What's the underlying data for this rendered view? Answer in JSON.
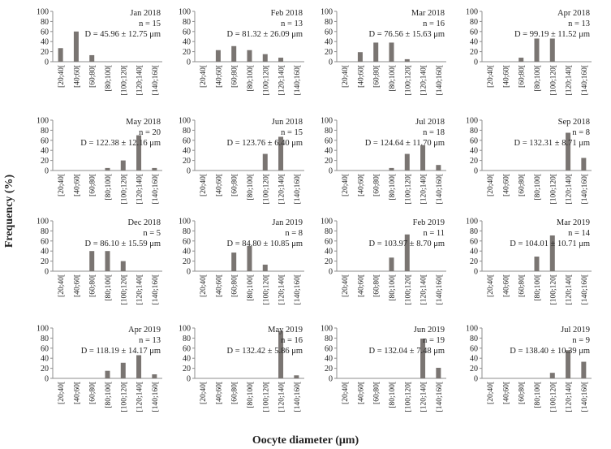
{
  "figure": {
    "ylabel": "Frequency (%)",
    "xlabel": "Oocyte diameter (μm)"
  },
  "chart_data": [
    {
      "type": "bar",
      "title": "Jan 2018",
      "n": "n = 15",
      "d": "D = 45.96 ± 12.75 μm",
      "categories": [
        "[20;40[",
        "[40;60[",
        "[60;80[",
        "[80;100[",
        "[100;120[",
        "[120;140[",
        "[140;160["
      ],
      "values": [
        27,
        60,
        13,
        0,
        0,
        0,
        0
      ],
      "ylim": [
        0,
        100
      ],
      "yticks": [
        0,
        20,
        40,
        60,
        80,
        100
      ]
    },
    {
      "type": "bar",
      "title": "Feb 2018",
      "n": "n = 13",
      "d": "D = 81.32 ± 26.09 μm",
      "categories": [
        "[20;40[",
        "[40;60[",
        "[60;80[",
        "[80;100[",
        "[100;120[",
        "[120;140[",
        "[140;160["
      ],
      "values": [
        0,
        23,
        31,
        23,
        15,
        8,
        0
      ],
      "ylim": [
        0,
        100
      ],
      "yticks": [
        0,
        20,
        40,
        60,
        80,
        100
      ]
    },
    {
      "type": "bar",
      "title": "Mar 2018",
      "n": "n = 16",
      "d": "D = 76.56 ± 15.63 μm",
      "categories": [
        "[20;40[",
        "[40;60[",
        "[60;80[",
        "[80;100[",
        "[100;120[",
        "[120;140[",
        "[140;160["
      ],
      "values": [
        0,
        19,
        38,
        38,
        5,
        0,
        0
      ],
      "ylim": [
        0,
        100
      ],
      "yticks": [
        0,
        20,
        40,
        60,
        80,
        100
      ]
    },
    {
      "type": "bar",
      "title": "Apr 2018",
      "n": "n = 13",
      "d": "D = 99.19 ± 11.52 μm",
      "categories": [
        "[20;40[",
        "[40;60[",
        "[60;80[",
        "[80;100[",
        "[100;120[",
        "[120;140[",
        "[140;160["
      ],
      "values": [
        0,
        0,
        8,
        46,
        46,
        0,
        0
      ],
      "ylim": [
        0,
        100
      ],
      "yticks": [
        0,
        20,
        40,
        60,
        80,
        100
      ]
    },
    {
      "type": "bar",
      "title": "May 2018",
      "n": "n = 20",
      "d": "D = 122.38 ± 12.16 μm",
      "categories": [
        "[20;40[",
        "[40;60[",
        "[60;80[",
        "[80;100[",
        "[100;120[",
        "[120;140[",
        "[140;160["
      ],
      "values": [
        0,
        0,
        0,
        5,
        20,
        70,
        5
      ],
      "ylim": [
        0,
        100
      ],
      "yticks": [
        0,
        20,
        40,
        60,
        80,
        100
      ]
    },
    {
      "type": "bar",
      "title": "Jun 2018",
      "n": "n = 15",
      "d": "D = 123.76 ± 6.40 μm",
      "categories": [
        "[20;40[",
        "[40;60[",
        "[60;80[",
        "[80;100[",
        "[100;120[",
        "[120;140[",
        "[140;160["
      ],
      "values": [
        0,
        0,
        0,
        0,
        33,
        67,
        0
      ],
      "ylim": [
        0,
        100
      ],
      "yticks": [
        0,
        20,
        40,
        60,
        80,
        100
      ]
    },
    {
      "type": "bar",
      "title": "Jul 2018",
      "n": "n = 18",
      "d": "D = 124.64 ± 11.70 μm",
      "categories": [
        "[20;40[",
        "[40;60[",
        "[60;80[",
        "[80;100[",
        "[100;120[",
        "[120;140[",
        "[140;160["
      ],
      "values": [
        0,
        0,
        0,
        5,
        33,
        50,
        11
      ],
      "ylim": [
        0,
        100
      ],
      "yticks": [
        0,
        20,
        40,
        60,
        80,
        100
      ]
    },
    {
      "type": "bar",
      "title": "Sep 2018",
      "n": "n = 8",
      "d": "D = 132.31 ± 8.71 μm",
      "categories": [
        "[20;40[",
        "[40;60[",
        "[60;80[",
        "[80;100[",
        "[100;120[",
        "[120;140[",
        "[140;160["
      ],
      "values": [
        0,
        0,
        0,
        0,
        0,
        75,
        25
      ],
      "ylim": [
        0,
        100
      ],
      "yticks": [
        0,
        20,
        40,
        60,
        80,
        100
      ]
    },
    {
      "type": "bar",
      "title": "Dec 2018",
      "n": "n = 5",
      "d": "D = 86.10 ± 15.59 μm",
      "categories": [
        "[20;40[",
        "[40;60[",
        "[60;80[",
        "[80;100[",
        "[100;120[",
        "[120;140[",
        "[140;160["
      ],
      "values": [
        0,
        0,
        40,
        40,
        20,
        0,
        0
      ],
      "ylim": [
        0,
        100
      ],
      "yticks": [
        0,
        20,
        40,
        60,
        80,
        100
      ]
    },
    {
      "type": "bar",
      "title": "Jan 2019",
      "n": "n = 8",
      "d": "D = 84.80 ± 10.85 μm",
      "categories": [
        "[20;40[",
        "[40;60[",
        "[60;80[",
        "[80;100[",
        "[100;120[",
        "[120;140[",
        "[140;160["
      ],
      "values": [
        0,
        0,
        37,
        50,
        13,
        0,
        0
      ],
      "ylim": [
        0,
        100
      ],
      "yticks": [
        0,
        20,
        40,
        60,
        80,
        100
      ]
    },
    {
      "type": "bar",
      "title": "Feb 2019",
      "n": "n = 11",
      "d": "D = 103.97 ± 8.70 μm",
      "categories": [
        "[20;40[",
        "[40;60[",
        "[60;80[",
        "[80;100[",
        "[100;120[",
        "[120;140[",
        "[140;160["
      ],
      "values": [
        0,
        0,
        0,
        27,
        73,
        0,
        0
      ],
      "ylim": [
        0,
        100
      ],
      "yticks": [
        0,
        20,
        40,
        60,
        80,
        100
      ]
    },
    {
      "type": "bar",
      "title": "Mar 2019",
      "n": "n = 14",
      "d": "D = 104.01 ± 10.71 μm",
      "categories": [
        "[20;40[",
        "[40;60[",
        "[60;80[",
        "[80;100[",
        "[100;120[",
        "[120;140[",
        "[140;160["
      ],
      "values": [
        0,
        0,
        0,
        29,
        71,
        0,
        0
      ],
      "ylim": [
        0,
        100
      ],
      "yticks": [
        0,
        20,
        40,
        60,
        80,
        100
      ]
    },
    {
      "type": "bar",
      "title": "Apr 2019",
      "n": "n = 13",
      "d": "D = 118.19 ± 14.17 μm",
      "categories": [
        "[20;40[",
        "[40;60[",
        "[60;80[",
        "[80;100[",
        "[100;120[",
        "[120;140[",
        "[140;160["
      ],
      "values": [
        0,
        0,
        0,
        15,
        31,
        46,
        8
      ],
      "ylim": [
        0,
        100
      ],
      "yticks": [
        0,
        20,
        40,
        60,
        80,
        100
      ]
    },
    {
      "type": "bar",
      "title": "May 2019",
      "n": "n = 16",
      "d": "D = 132.42 ± 5.86 μm",
      "categories": [
        "[20;40[",
        "[40;60[",
        "[60;80[",
        "[80;100[",
        "[100;120[",
        "[120;140[",
        "[140;160["
      ],
      "values": [
        0,
        0,
        0,
        0,
        0,
        94,
        6
      ],
      "ylim": [
        0,
        100
      ],
      "yticks": [
        0,
        20,
        40,
        60,
        80,
        100
      ]
    },
    {
      "type": "bar",
      "title": "Jun 2019",
      "n": "n = 19",
      "d": "D = 132.04 ± 7.48 μm",
      "categories": [
        "[20;40[",
        "[40;60[",
        "[60;80[",
        "[80;100[",
        "[100;120[",
        "[120;140[",
        "[140;160["
      ],
      "values": [
        0,
        0,
        0,
        0,
        0,
        79,
        21
      ],
      "ylim": [
        0,
        100
      ],
      "yticks": [
        0,
        20,
        40,
        60,
        80,
        100
      ]
    },
    {
      "type": "bar",
      "title": "Jul 2019",
      "n": "n = 9",
      "d": "D = 138.40 ± 10.39 μm",
      "categories": [
        "[20;40[",
        "[40;60[",
        "[60;80[",
        "[80;100[",
        "[100;120[",
        "[120;140[",
        "[140;160["
      ],
      "values": [
        0,
        0,
        0,
        0,
        11,
        56,
        33
      ],
      "ylim": [
        0,
        100
      ],
      "yticks": [
        0,
        20,
        40,
        60,
        80,
        100
      ]
    }
  ],
  "colors": {
    "bar": "#7a7572",
    "axis": "#8c8c8c"
  }
}
